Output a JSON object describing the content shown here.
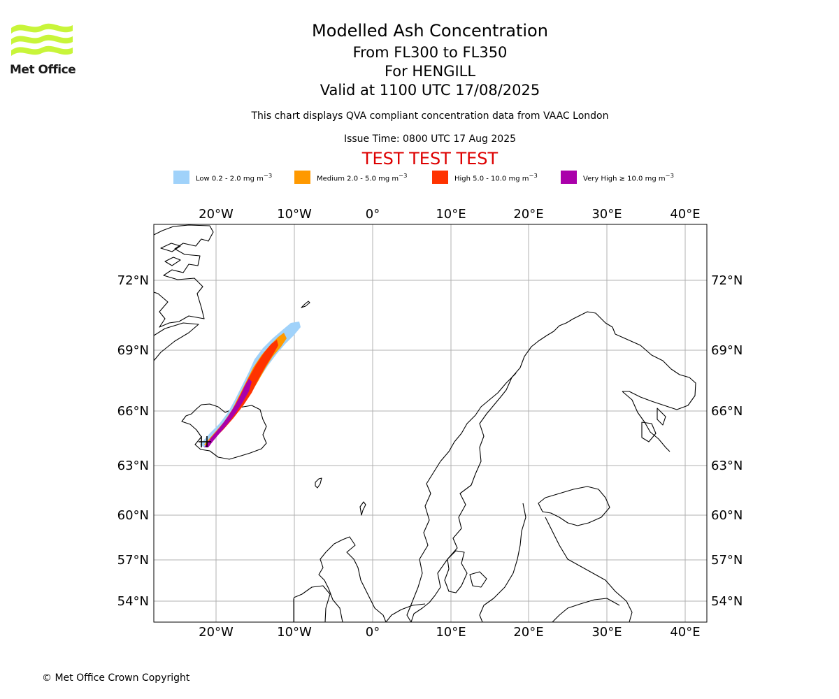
{
  "logo": {
    "text": "Met Office",
    "color": "#c8f53a"
  },
  "header": {
    "title": "Modelled Ash Concentration",
    "levels": "From FL300 to FL350",
    "volcano": "For HENGILL",
    "valid": "Valid at 1100 UTC 17/08/2025",
    "note": "This chart displays QVA compliant concentration data from VAAC London",
    "issue": "Issue Time: 0800 UTC 17 Aug 2025",
    "test": "TEST TEST TEST"
  },
  "legend": [
    {
      "label": "Low 0.2 - 2.0 mg m",
      "sup": "−3",
      "color": "#a0d2fa"
    },
    {
      "label": "Medium 2.0 - 5.0 mg m",
      "sup": "−3",
      "color": "#ff9900"
    },
    {
      "label": "High 5.0 - 10.0 mg m",
      "sup": "−3",
      "color": "#ff3300"
    },
    {
      "label": "Very High  ≥  10.0 mg m",
      "sup": "−3",
      "color": "#aa00aa"
    }
  ],
  "map": {
    "lon_labels": [
      "20°W",
      "10°W",
      "0°",
      "10°E",
      "20°E",
      "30°E",
      "40°E"
    ],
    "lat_labels": [
      "72°N",
      "69°N",
      "66°N",
      "63°N",
      "60°N",
      "57°N",
      "54°N"
    ],
    "grid": true
  },
  "footer": {
    "copyright": "© Met Office Crown Copyright"
  }
}
